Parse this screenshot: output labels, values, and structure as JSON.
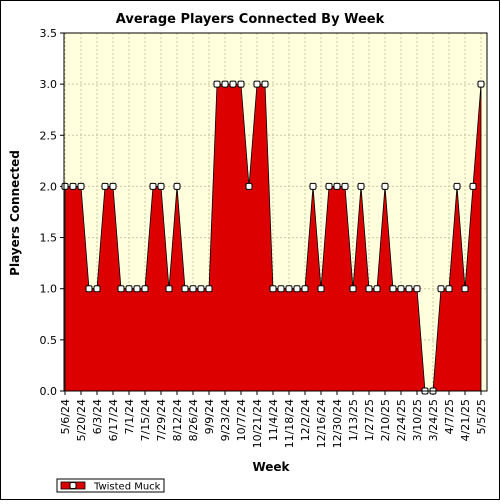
{
  "chart_data": {
    "type": "area",
    "title": "Average Players Connected By Week",
    "xlabel": "Week",
    "ylabel": "Players Connected",
    "ylim": [
      0,
      3.5
    ],
    "y_ticks": [
      "0.0",
      "0.5",
      "1.0",
      "1.5",
      "2.0",
      "2.5",
      "3.0",
      "3.5"
    ],
    "x_tick_labels": [
      "5/6/24",
      "5/20/24",
      "6/3/24",
      "6/17/24",
      "7/1/24",
      "7/15/24",
      "7/29/24",
      "8/12/24",
      "8/26/24",
      "9/9/24",
      "9/23/24",
      "10/7/24",
      "10/21/24",
      "11/4/24",
      "11/18/24",
      "12/2/24",
      "12/16/24",
      "12/30/24",
      "1/13/25",
      "1/27/25",
      "2/10/25",
      "2/24/25",
      "3/10/25",
      "3/24/25",
      "4/7/25",
      "4/21/25",
      "5/5/25"
    ],
    "grid": true,
    "legend_position": "bottom-left",
    "colors": {
      "fill": "#dd0000",
      "plot_bg": "#ffffdd",
      "grid": "#c8c8a0",
      "marker_fill": "#ffffff"
    },
    "series": [
      {
        "name": "Twisted Muck",
        "values": [
          2,
          2,
          2,
          1,
          1,
          2,
          2,
          1,
          1,
          1,
          1,
          2,
          2,
          1,
          2,
          1,
          1,
          1,
          1,
          3,
          3,
          3,
          3,
          2,
          3,
          3,
          1,
          1,
          1,
          1,
          1,
          2,
          1,
          2,
          2,
          2,
          1,
          2,
          1,
          1,
          2,
          1,
          1,
          1,
          1,
          0,
          0,
          1,
          1,
          2,
          1,
          2,
          3
        ]
      }
    ]
  }
}
